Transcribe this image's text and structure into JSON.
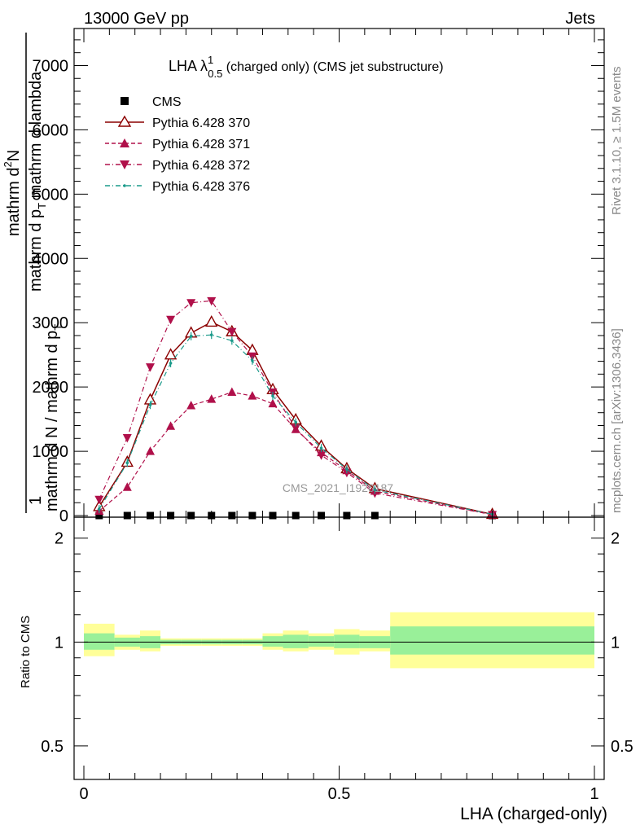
{
  "header": {
    "left": "13000 GeV pp",
    "right": "Jets"
  },
  "side": {
    "rivet": "Rivet 3.1.10, ≥ 1.5M events",
    "mcplots": "mcplots.cern.ch [arXiv:1306.3436]"
  },
  "plot_title": {
    "main": "LHA λ",
    "sup": "1",
    "sub": "0.5",
    "rest": " (charged only) (CMS jet substructure)"
  },
  "watermark": "CMS_2021_I1920187",
  "ylabel_main": {
    "numerator": "mathrm d",
    "numerator_sup": "2",
    "numerator_n": "N",
    "denominator": "mathrm d p",
    "denominator_sub": "T",
    "denominator_rest": " mathrm d lambda",
    "fraction_one": "1",
    "fraction_den": "mathrm d N / mathrm d p",
    "fraction_den_sub": "T"
  },
  "ylabel_ratio": "Ratio to CMS",
  "xlabel": "LHA (charged-only)",
  "legend": [
    {
      "label": "CMS"
    },
    {
      "label": "Pythia 6.428 370"
    },
    {
      "label": "Pythia 6.428 371"
    },
    {
      "label": "Pythia 6.428 372"
    },
    {
      "label": "Pythia 6.428 376"
    }
  ],
  "main_axis": {
    "yticks": [
      {
        "v": 0,
        "label": "0"
      },
      {
        "v": 1000,
        "label": "1000"
      },
      {
        "v": 2000,
        "label": "2000"
      },
      {
        "v": 3000,
        "label": "3000"
      },
      {
        "v": 4000,
        "label": "4000"
      },
      {
        "v": 5000,
        "label": "5000"
      },
      {
        "v": 6000,
        "label": "6000"
      },
      {
        "v": 7000,
        "label": "7000"
      }
    ]
  },
  "ratio_axis": {
    "yticks": [
      {
        "v": 0.5,
        "label": "0.5"
      },
      {
        "v": 1,
        "label": "1"
      },
      {
        "v": 2,
        "label": "2"
      }
    ]
  },
  "x_axis": {
    "xticks": [
      {
        "v": 0,
        "label": "0"
      },
      {
        "v": 0.5,
        "label": "0.5"
      },
      {
        "v": 1,
        "label": "1"
      }
    ]
  },
  "chart_data": {
    "type": "line",
    "title": "LHA λ^1_0.5 (charged only) (CMS jet substructure)",
    "xlabel": "LHA (charged-only)",
    "ylabel": "1/(mathrm d N / mathrm d p_T) mathrm d^2N/(mathrm d p_T mathrm d lambda)",
    "xlim": [
      0,
      1
    ],
    "ylim": [
      0,
      7500
    ],
    "bins": [
      [
        0,
        0.06
      ],
      [
        0.06,
        0.11
      ],
      [
        0.11,
        0.15
      ],
      [
        0.15,
        0.19
      ],
      [
        0.19,
        0.23
      ],
      [
        0.23,
        0.27
      ],
      [
        0.27,
        0.31
      ],
      [
        0.31,
        0.35
      ],
      [
        0.35,
        0.39
      ],
      [
        0.39,
        0.44
      ],
      [
        0.44,
        0.49
      ],
      [
        0.49,
        0.54
      ],
      [
        0.54,
        0.6
      ],
      [
        0.6,
        1.0
      ]
    ],
    "x": [
      0.03,
      0.085,
      0.13,
      0.17,
      0.21,
      0.25,
      0.29,
      0.33,
      0.37,
      0.415,
      0.465,
      0.515,
      0.57,
      0.8
    ],
    "series": [
      {
        "name": "CMS",
        "marker": "square",
        "color": "#000000",
        "values": [
          0,
          0,
          0,
          0,
          0,
          0,
          0,
          0,
          0,
          0,
          0,
          0,
          0,
          0
        ]
      },
      {
        "name": "Pythia 6.428 370",
        "marker": "open-triangle-up",
        "color": "#8b0000",
        "dash": "solid",
        "values": [
          140,
          830,
          1800,
          2500,
          2840,
          3010,
          2860,
          2570,
          1960,
          1490,
          1080,
          730,
          420,
          20
        ]
      },
      {
        "name": "Pythia 6.428 371",
        "marker": "triangle-up",
        "color": "#b0104a",
        "dash": "dashed",
        "values": [
          70,
          440,
          1000,
          1390,
          1710,
          1810,
          1920,
          1860,
          1740,
          1340,
          980,
          700,
          380,
          15
        ]
      },
      {
        "name": "Pythia 6.428 372",
        "marker": "triangle-down",
        "color": "#b0104a",
        "dash": "dashdot",
        "values": [
          250,
          1210,
          2310,
          3050,
          3310,
          3340,
          2860,
          2480,
          1920,
          1360,
          940,
          670,
          350,
          15
        ]
      },
      {
        "name": "Pythia 6.428 376",
        "marker": "dot",
        "color": "#1a9a8a",
        "dash": "dashdot",
        "values": [
          100,
          820,
          1720,
          2370,
          2790,
          2810,
          2720,
          2410,
          1860,
          1450,
          1050,
          720,
          400,
          20
        ]
      }
    ],
    "ratio": {
      "ylabel": "Ratio to CMS",
      "ylim": [
        0.4,
        2.3
      ],
      "scale": "log",
      "band_inner": [
        [
          0.95,
          1.06
        ],
        [
          0.97,
          1.03
        ],
        [
          0.96,
          1.04
        ],
        [
          0.985,
          1.015
        ],
        [
          0.985,
          1.015
        ],
        [
          0.985,
          1.015
        ],
        [
          0.985,
          1.015
        ],
        [
          0.985,
          1.015
        ],
        [
          0.97,
          1.04
        ],
        [
          0.96,
          1.05
        ],
        [
          0.97,
          1.04
        ],
        [
          0.96,
          1.05
        ],
        [
          0.96,
          1.04
        ],
        [
          0.92,
          1.11
        ]
      ],
      "band_outer": [
        [
          0.91,
          1.13
        ],
        [
          0.95,
          1.05
        ],
        [
          0.94,
          1.08
        ],
        [
          0.975,
          1.025
        ],
        [
          0.975,
          1.025
        ],
        [
          0.975,
          1.025
        ],
        [
          0.975,
          1.025
        ],
        [
          0.975,
          1.025
        ],
        [
          0.95,
          1.06
        ],
        [
          0.94,
          1.08
        ],
        [
          0.95,
          1.06
        ],
        [
          0.92,
          1.09
        ],
        [
          0.94,
          1.08
        ],
        [
          0.84,
          1.22
        ]
      ],
      "inner_color": "#99f099",
      "outer_color": "#ffff99"
    }
  }
}
